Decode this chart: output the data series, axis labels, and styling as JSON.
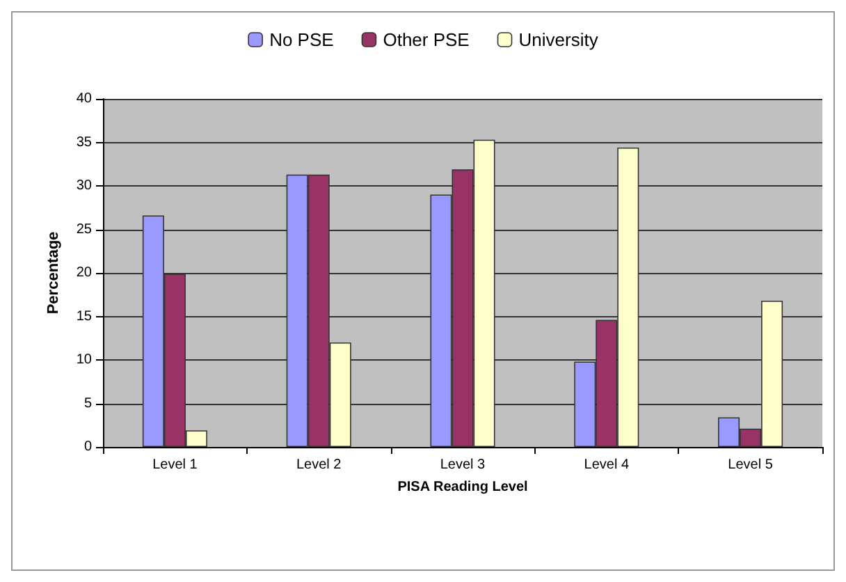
{
  "chart_data": {
    "type": "bar",
    "xlabel": "PISA Reading Level",
    "ylabel": "Percentage",
    "categories": [
      "Level 1",
      "Level 2",
      "Level 3",
      "Level 4",
      "Level 5"
    ],
    "series": [
      {
        "name": "No PSE",
        "color": "#9999ff",
        "values": [
          26.6,
          31.3,
          29.0,
          9.8,
          3.4
        ]
      },
      {
        "name": "Other PSE",
        "color": "#993366",
        "values": [
          19.9,
          31.3,
          31.9,
          14.6,
          2.1
        ]
      },
      {
        "name": "University",
        "color": "#ffffcc",
        "values": [
          1.9,
          12.0,
          35.3,
          34.4,
          16.8
        ]
      }
    ],
    "ylim": [
      0,
      40
    ],
    "yticks": [
      0,
      5,
      10,
      15,
      20,
      25,
      30,
      35,
      40
    ],
    "grid": "y",
    "legend": "top"
  }
}
